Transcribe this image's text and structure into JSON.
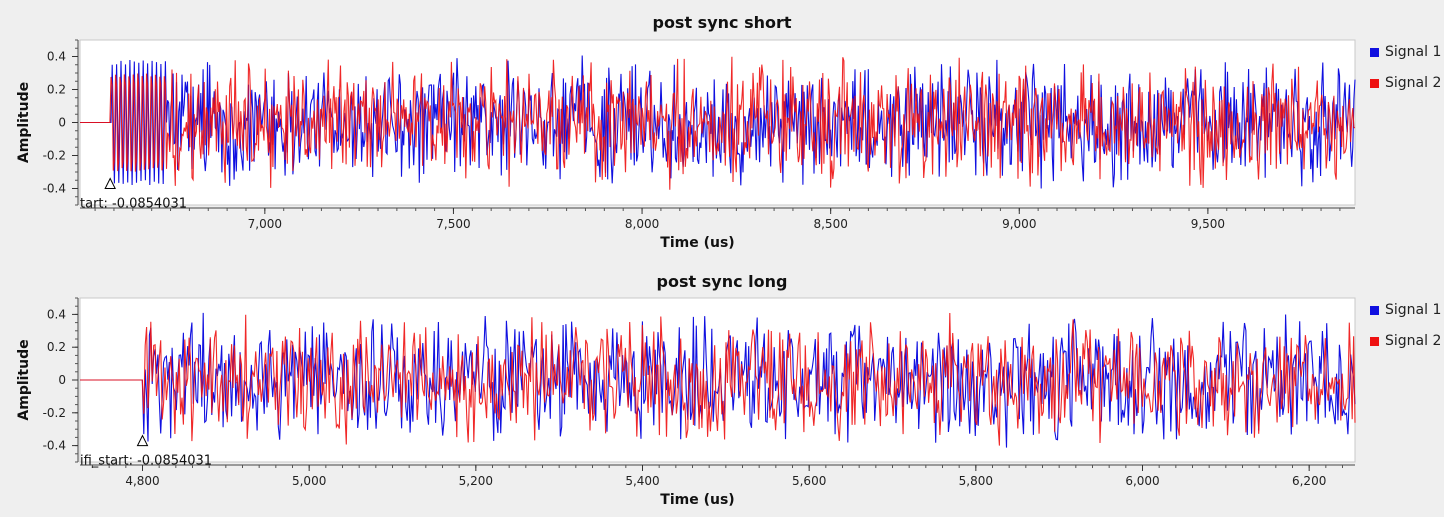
{
  "charts": [
    {
      "title": "post sync short",
      "xlabel": "Time (us)",
      "ylabel": "Amplitude",
      "annotation": "tart: -0.0854031",
      "legend": [
        "Signal 1",
        "Signal 2"
      ],
      "colors": {
        "Signal 1": "#1010e0",
        "Signal 2": "#ee1111"
      },
      "xticks": [
        "7,000",
        "7,500",
        "8,000",
        "8,500",
        "9,000",
        "9,500"
      ],
      "yticks": [
        "0.4",
        "0.2",
        "0",
        "-0.2",
        "-0.4"
      ]
    },
    {
      "title": "post sync long",
      "xlabel": "Time (us)",
      "ylabel": "Amplitude",
      "annotation": "ifi_start: -0.0854031",
      "legend": [
        "Signal 1",
        "Signal 2"
      ],
      "colors": {
        "Signal 1": "#1010e0",
        "Signal 2": "#ee1111"
      },
      "xticks": [
        "4,800",
        "5,000",
        "5,200",
        "5,400",
        "5,600",
        "5,800",
        "6,000",
        "6,200"
      ],
      "yticks": [
        "0.4",
        "0.2",
        "0",
        "-0.2",
        "-0.4"
      ]
    }
  ],
  "chart_data": [
    {
      "type": "line",
      "title": "post sync short",
      "xlabel": "Time (us)",
      "ylabel": "Amplitude",
      "xlim": [
        6510,
        9890
      ],
      "ylim": [
        -0.5,
        0.5
      ],
      "x_ticks": [
        7000,
        7500,
        8000,
        8500,
        9000,
        9500
      ],
      "y_ticks": [
        0.4,
        0.2,
        0,
        -0.2,
        -0.4
      ],
      "marker": {
        "x": 6590,
        "y": -0.4,
        "label": "tart: -0.0854031"
      },
      "series": [
        {
          "name": "Signal 1",
          "description": "Zero until ~6590 us, then a ~0.38 amplitude oscillation until ~6740 us, followed by noise-like signal within about ±0.45."
        },
        {
          "name": "Signal 2",
          "description": "Zero until ~6590 us, then a ~0.38 amplitude oscillation until ~6740 us, followed by noise-like signal within about ±0.45."
        }
      ],
      "legend_position": "right"
    },
    {
      "type": "line",
      "title": "post sync long",
      "xlabel": "Time (us)",
      "ylabel": "Amplitude",
      "xlim": [
        4725,
        6255
      ],
      "ylim": [
        -0.5,
        0.5
      ],
      "x_ticks": [
        4800,
        5000,
        5200,
        5400,
        5600,
        5800,
        6000,
        6200
      ],
      "y_ticks": [
        0.4,
        0.2,
        0,
        -0.2,
        -0.4
      ],
      "marker": {
        "x": 4800,
        "y": -0.4,
        "label": "ifi_start: -0.0854031"
      },
      "series": [
        {
          "name": "Signal 1",
          "description": "Zero until ~4800 us, then noise-like signal within about ±0.45."
        },
        {
          "name": "Signal 2",
          "description": "Zero until ~4800 us, then noise-like signal within about ±0.45."
        }
      ],
      "legend_position": "right"
    }
  ]
}
